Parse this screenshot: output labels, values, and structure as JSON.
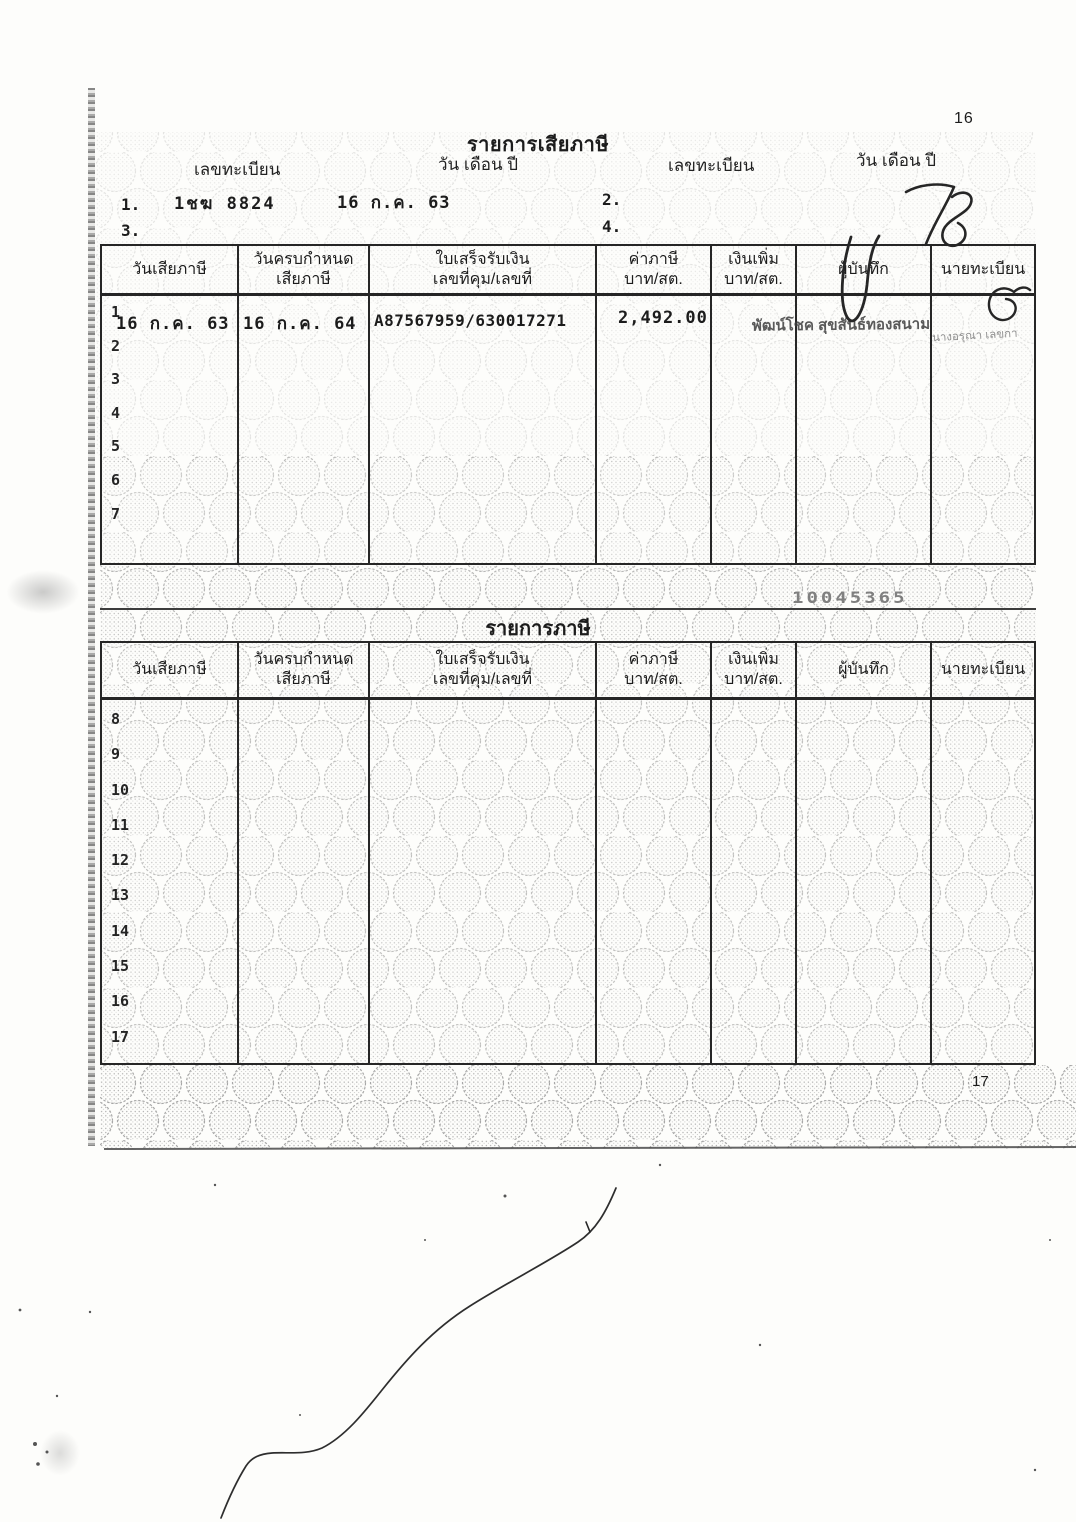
{
  "page": {
    "page_no_top": "16",
    "page_no_bottom": "17",
    "serial_number": "10045365",
    "handwritten_mark": "78"
  },
  "section1": {
    "title": "รายการเสียภาษี",
    "labels": {
      "registration_left": "เลขทะเบียน",
      "date_left": "วัน เดือน ปี",
      "registration_right": "เลขทะเบียน",
      "date_right": "วัน เดือน ปี"
    },
    "entries": [
      {
        "no": "1.",
        "registration": "1ชฆ 8824",
        "date": "16 ก.ค. 63"
      },
      {
        "no": "2.",
        "registration": "",
        "date": ""
      },
      {
        "no": "3.",
        "registration": "",
        "date": ""
      },
      {
        "no": "4.",
        "registration": "",
        "date": ""
      }
    ]
  },
  "table_columns": [
    {
      "l1": "วันเสียภาษี",
      "l2": ""
    },
    {
      "l1": "วันครบกำหนด",
      "l2": "เสียภาษี"
    },
    {
      "l1": "ใบเสร็จรับเงิน",
      "l2": "เลขที่คุม/เลขที่"
    },
    {
      "l1": "ค่าภาษี",
      "l2": "บาท/สต."
    },
    {
      "l1": "เงินเพิ่ม",
      "l2": "บาท/สต."
    },
    {
      "l1": "ผู้บันทึก",
      "l2": ""
    },
    {
      "l1": "นายทะเบียน",
      "l2": ""
    }
  ],
  "table1": {
    "row_numbers": [
      "1",
      "2",
      "3",
      "4",
      "5",
      "6",
      "7"
    ],
    "rows": [
      {
        "pay_date": "16 ก.ค. 63",
        "due_date": "16 ก.ค. 64",
        "receipt": "A87567959/630017271",
        "tax": "2,492.00",
        "surcharge": "",
        "recorder_stamp": "พัฒน์โชค สุขสันธ์ทองสนาม",
        "registrar_note": "นางอรุณา เลขกา"
      }
    ]
  },
  "section2": {
    "title": "รายการภาษี"
  },
  "table2": {
    "row_numbers": [
      "8",
      "9",
      "10",
      "11",
      "12",
      "13",
      "14",
      "15",
      "16",
      "17"
    ]
  }
}
